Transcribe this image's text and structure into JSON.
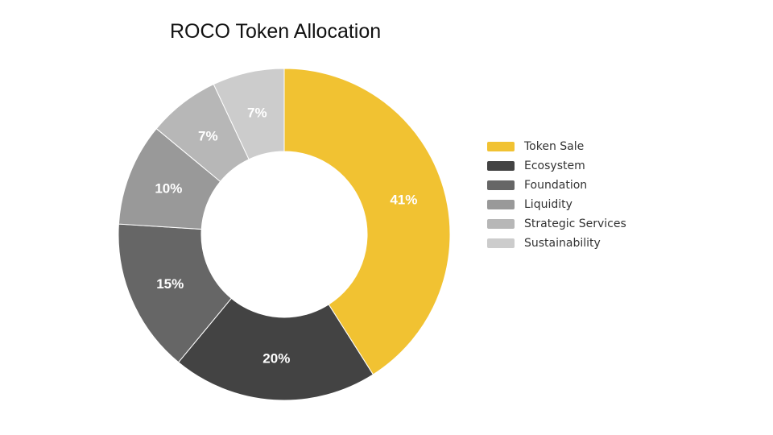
{
  "chart_data": {
    "type": "pie",
    "title": "ROCO Token Allocation",
    "categories": [
      "Token Sale",
      "Ecosystem",
      "Foundation",
      "Liquidity",
      "Strategic Services",
      "Sustainability"
    ],
    "values": [
      41,
      20,
      15,
      10,
      7,
      7
    ],
    "value_labels": [
      "41%",
      "20%",
      "15%",
      "10%",
      "7%",
      "7%"
    ],
    "colors": [
      "#F1C232",
      "#434343",
      "#666666",
      "#999999",
      "#B7B7B7",
      "#CCCCCC"
    ],
    "legend_position": "right",
    "donut": true
  }
}
